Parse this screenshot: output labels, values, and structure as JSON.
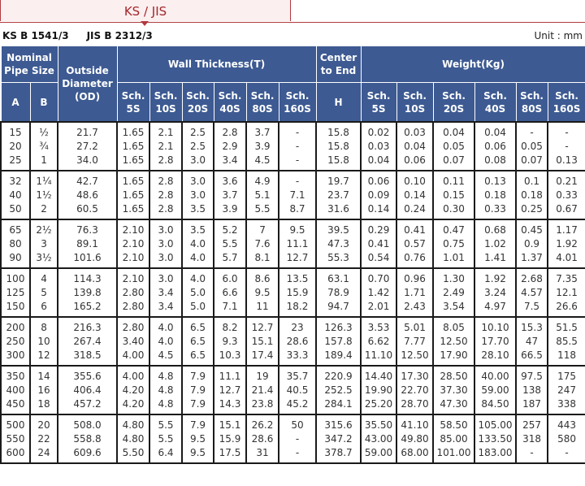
{
  "tab": {
    "label": "KS / JIS"
  },
  "standards": [
    "KS B 1541/3",
    "JIS B 2312/3"
  ],
  "unit": "Unit : mm",
  "header": {
    "nominal": "Nominal\nPipe Size",
    "od": "Outside\nDiameter\n(OD)",
    "wall": "Wall Thickness(T)",
    "center": "Center\nto End",
    "weight": "Weight(Kg)",
    "a": "A",
    "b": "B",
    "h": "H",
    "sch": [
      "Sch.\n5S",
      "Sch.\n10S",
      "Sch.\n20S",
      "Sch.\n40S",
      "Sch.\n80S",
      "Sch.\n160S"
    ]
  },
  "colors": {
    "header_bg": "#3d5a92",
    "tab_accent": "#b03a3f"
  },
  "rows": [
    [
      [
        "15",
        "20",
        "25"
      ],
      [
        "½",
        "¾",
        "1"
      ],
      [
        "21.7",
        "27.2",
        "34.0"
      ],
      [
        "1.65",
        "1.65",
        "1.65"
      ],
      [
        "2.1",
        "2.1",
        "2.8"
      ],
      [
        "2.5",
        "2.5",
        "3.0"
      ],
      [
        "2.8",
        "2.9",
        "3.4"
      ],
      [
        "3.7",
        "3.9",
        "4.5"
      ],
      [
        "-",
        "-",
        "-"
      ],
      [
        "15.8",
        "15.8",
        "15.8"
      ],
      [
        "0.02",
        "0.03",
        "0.04"
      ],
      [
        "0.03",
        "0.04",
        "0.06"
      ],
      [
        "0.04",
        "0.05",
        "0.07"
      ],
      [
        "0.04",
        "0.06",
        "0.08"
      ],
      [
        "-",
        "0.05",
        "0.07"
      ],
      [
        "-",
        "-",
        "0.13"
      ]
    ],
    [
      [
        "32",
        "40",
        "50"
      ],
      [
        "1¼",
        "1½",
        "2"
      ],
      [
        "42.7",
        "48.6",
        "60.5"
      ],
      [
        "1.65",
        "1.65",
        "1.65"
      ],
      [
        "2.8",
        "2.8",
        "2.8"
      ],
      [
        "3.0",
        "3.0",
        "3.5"
      ],
      [
        "3.6",
        "3.7",
        "3.9"
      ],
      [
        "4.9",
        "5.1",
        "5.5"
      ],
      [
        "-",
        "7.1",
        "8.7"
      ],
      [
        "19.7",
        "23.7",
        "31.6"
      ],
      [
        "0.06",
        "0.09",
        "0.14"
      ],
      [
        "0.10",
        "0.14",
        "0.24"
      ],
      [
        "0.11",
        "0.15",
        "0.30"
      ],
      [
        "0.13",
        "0.18",
        "0.33"
      ],
      [
        "0.1",
        "0.18",
        "0.25"
      ],
      [
        "0.21",
        "0.33",
        "0.67"
      ]
    ],
    [
      [
        "65",
        "80",
        "90"
      ],
      [
        "2½",
        "3",
        "3½"
      ],
      [
        "76.3",
        "89.1",
        "101.6"
      ],
      [
        "2.10",
        "2.10",
        "2.10"
      ],
      [
        "3.0",
        "3.0",
        "3.0"
      ],
      [
        "3.5",
        "4.0",
        "4.0"
      ],
      [
        "5.2",
        "5.5",
        "5.7"
      ],
      [
        "7",
        "7.6",
        "8.1"
      ],
      [
        "9.5",
        "11.1",
        "12.7"
      ],
      [
        "39.5",
        "47.3",
        "55.3"
      ],
      [
        "0.29",
        "0.41",
        "0.54"
      ],
      [
        "0.41",
        "0.57",
        "0.76"
      ],
      [
        "0.47",
        "0.75",
        "1.01"
      ],
      [
        "0.68",
        "1.02",
        "1.41"
      ],
      [
        "0.45",
        "0.9",
        "1.37"
      ],
      [
        "1.17",
        "1.92",
        "4.01"
      ]
    ],
    [
      [
        "100",
        "125",
        "150"
      ],
      [
        "4",
        "5",
        "6"
      ],
      [
        "114.3",
        "139.8",
        "165.2"
      ],
      [
        "2.10",
        "2.80",
        "2.80"
      ],
      [
        "3.0",
        "3.4",
        "3.4"
      ],
      [
        "4.0",
        "5.0",
        "5.0"
      ],
      [
        "6.0",
        "6.6",
        "7.1"
      ],
      [
        "8.6",
        "9.5",
        "11"
      ],
      [
        "13.5",
        "15.9",
        "18.2"
      ],
      [
        "63.1",
        "78.9",
        "94.7"
      ],
      [
        "0.70",
        "1.42",
        "2.01"
      ],
      [
        "0.96",
        "1.71",
        "2.43"
      ],
      [
        "1.30",
        "2.49",
        "3.54"
      ],
      [
        "1.92",
        "3.24",
        "4.97"
      ],
      [
        "2.68",
        "4.57",
        "7.5"
      ],
      [
        "7.35",
        "12.1",
        "26.6"
      ]
    ],
    [
      [
        "200",
        "250",
        "300"
      ],
      [
        "8",
        "10",
        "12"
      ],
      [
        "216.3",
        "267.4",
        "318.5"
      ],
      [
        "2.80",
        "3.40",
        "4.00"
      ],
      [
        "4.0",
        "4.0",
        "4.5"
      ],
      [
        "6.5",
        "6.5",
        "6.5"
      ],
      [
        "8.2",
        "9.3",
        "10.3"
      ],
      [
        "12.7",
        "15.1",
        "17.4"
      ],
      [
        "23",
        "28.6",
        "33.3"
      ],
      [
        "126.3",
        "157.8",
        "189.4"
      ],
      [
        "3.53",
        "6.62",
        "11.10"
      ],
      [
        "5.01",
        "7.77",
        "12.50"
      ],
      [
        "8.05",
        "12.50",
        "17.90"
      ],
      [
        "10.10",
        "17.70",
        "28.10"
      ],
      [
        "15.3",
        "47",
        "66.5"
      ],
      [
        "51.5",
        "85.5",
        "118"
      ]
    ],
    [
      [
        "350",
        "400",
        "450"
      ],
      [
        "14",
        "16",
        "18"
      ],
      [
        "355.6",
        "406.4",
        "457.2"
      ],
      [
        "4.00",
        "4.20",
        "4.20"
      ],
      [
        "4.8",
        "4.8",
        "4.8"
      ],
      [
        "7.9",
        "7.9",
        "7.9"
      ],
      [
        "11.1",
        "12.7",
        "14.3"
      ],
      [
        "19",
        "21.4",
        "23.8"
      ],
      [
        "35.7",
        "40.5",
        "45.2"
      ],
      [
        "220.9",
        "252.5",
        "284.1"
      ],
      [
        "14.40",
        "19.90",
        "25.20"
      ],
      [
        "17.30",
        "22.70",
        "28.70"
      ],
      [
        "28.50",
        "37.30",
        "47.30"
      ],
      [
        "40.00",
        "59.00",
        "84.50"
      ],
      [
        "97.5",
        "138",
        "187"
      ],
      [
        "175",
        "247",
        "338"
      ]
    ],
    [
      [
        "500",
        "550",
        "600"
      ],
      [
        "20",
        "22",
        "24"
      ],
      [
        "508.0",
        "558.8",
        "609.6"
      ],
      [
        "4.80",
        "4.80",
        "5.50"
      ],
      [
        "5.5",
        "5.5",
        "6.4"
      ],
      [
        "7.9",
        "9.5",
        "9.5"
      ],
      [
        "15.1",
        "15.9",
        "17.5"
      ],
      [
        "26.2",
        "28.6",
        "31"
      ],
      [
        "50",
        "-",
        "-"
      ],
      [
        "315.6",
        "347.2",
        "378.7"
      ],
      [
        "35.50",
        "43.00",
        "59.00"
      ],
      [
        "41.10",
        "49.80",
        "68.00"
      ],
      [
        "58.50",
        "85.00",
        "101.00"
      ],
      [
        "105.00",
        "133.50",
        "183.00"
      ],
      [
        "257",
        "318",
        "-"
      ],
      [
        "443",
        "580",
        "-"
      ]
    ]
  ]
}
